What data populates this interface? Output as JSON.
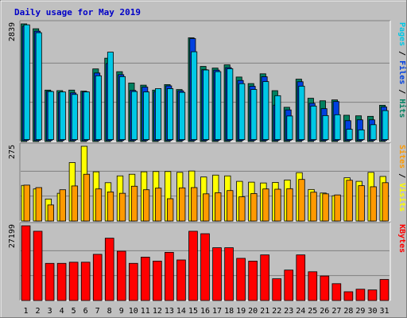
{
  "chart_data": {
    "type": "bar",
    "title": "Daily usage for May 2019",
    "categories": [
      "1",
      "2",
      "3",
      "4",
      "5",
      "6",
      "7",
      "8",
      "9",
      "10",
      "11",
      "12",
      "13",
      "14",
      "15",
      "16",
      "17",
      "18",
      "19",
      "20",
      "21",
      "22",
      "23",
      "24",
      "25",
      "26",
      "27",
      "28",
      "29",
      "30",
      "31"
    ],
    "weekend_categories": [
      "4",
      "5",
      "11",
      "12",
      "18",
      "19",
      "25",
      "26"
    ],
    "panels": [
      {
        "id": "top",
        "max_label": "2839",
        "ymax": 2839,
        "right_label_parts": [
          {
            "text": "Pages",
            "color": "#00c8e6"
          },
          {
            "text": " / ",
            "color": "#000000"
          },
          {
            "text": "Files",
            "color": "#0040e0"
          },
          {
            "text": " / ",
            "color": "#000000"
          },
          {
            "text": "Hits",
            "color": "#008060"
          }
        ],
        "series": [
          {
            "name": "Hits",
            "color": "#008060",
            "values": [
              2839,
              2721,
              1241,
              1228,
              1241,
              1215,
              1752,
              2011,
              1685,
              1412,
              1360,
              1241,
              1373,
              1254,
              2502,
              1812,
              1772,
              1851,
              1556,
              1398,
              1634,
              1227,
              826,
              1504,
              1044,
              983,
              1004,
              634,
              620,
              608,
              875
            ]
          },
          {
            "name": "Files",
            "color": "#0040e0",
            "values": [
              2760,
              2640,
              1190,
              1160,
              1150,
              1175,
              1630,
              1860,
              1590,
              1210,
              1290,
              1180,
              1320,
              1200,
              2460,
              1710,
              1700,
              1760,
              1450,
              1310,
              1540,
              855,
              740,
              1420,
              900,
              770,
              942,
              480,
              500,
              500,
              810
            ]
          },
          {
            "name": "Pages",
            "color": "#00c8e6",
            "values": [
              2770,
              2580,
              1160,
              1150,
              1090,
              1150,
              1540,
              2110,
              1520,
              1160,
              1150,
              1230,
              1230,
              1140,
              2120,
              1680,
              1640,
              1710,
              1350,
              1210,
              1400,
              1060,
              570,
              1290,
              810,
              580,
              600,
              250,
              235,
              360,
              700
            ]
          }
        ]
      },
      {
        "id": "middle",
        "max_label": "275",
        "ymax": 275,
        "right_label_parts": [
          {
            "text": "Sites",
            "color": "#ff9a00"
          },
          {
            "text": " / ",
            "color": "#000000"
          },
          {
            "text": "Visits",
            "color": "#ffff00"
          }
        ],
        "series": [
          {
            "name": "Visits",
            "color": "#ffff00",
            "values": [
              131,
              118,
              81,
              102,
              215,
              275,
              181,
              141,
              166,
              172,
              181,
              182,
              182,
              179,
              184,
              162,
              169,
              166,
              146,
              143,
              140,
              142,
              151,
              178,
              116,
              103,
              93,
              159,
              146,
              179,
              164
            ]
          },
          {
            "name": "Sites",
            "color": "#ff9a00",
            "values": [
              132,
              123,
              59,
              115,
              129,
              172,
              118,
              107,
              102,
              128,
              115,
              121,
              82,
              122,
              123,
              100,
              104,
              112,
              89,
              101,
              118,
              117,
              119,
              153,
              106,
              100,
              96,
              150,
              130,
              126,
              141
            ]
          }
        ]
      },
      {
        "id": "bottom",
        "max_label": "27199",
        "ymax": 27199,
        "right_label_parts": [
          {
            "text": "KBytes",
            "color": "#ff0000"
          }
        ],
        "series": [
          {
            "name": "KBytes",
            "color": "#ff0000",
            "values": [
              27199,
              25210,
              13524,
              13526,
              13937,
              13946,
              16810,
              22690,
              17943,
              13526,
              15788,
              14342,
              17532,
              14763,
              25210,
              24311,
              19212,
              19212,
              15352,
              14330,
              16600,
              7920,
              11080,
              16600,
              10470,
              8930,
              6130,
              3190,
              4110,
              3850,
              7660
            ]
          }
        ]
      }
    ]
  }
}
